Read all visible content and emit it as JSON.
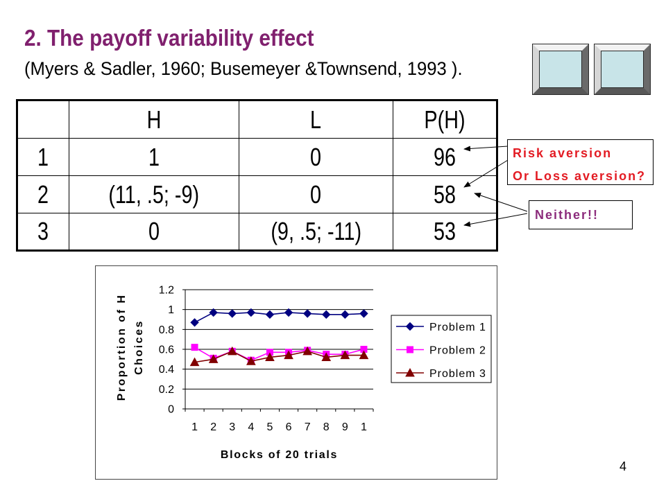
{
  "slide": {
    "title": "2. The payoff variability effect",
    "subtitle": "(Myers & Sadler, 1960; Busemeyer &Townsend, 1993 ).",
    "page_number": "4"
  },
  "colors": {
    "title": "#80206E",
    "risk_callout": "#E31B23",
    "neither_callout": "#8C2C7C",
    "button_face": "#C8E4E8"
  },
  "table": {
    "headers": [
      "H",
      "L",
      "P(H)"
    ],
    "rows": [
      [
        "1",
        "1",
        "0",
        "96"
      ],
      [
        "2",
        "(11, .5; -9)",
        "0",
        "58"
      ],
      [
        "3",
        "0",
        "(9, .5; -11)",
        "53"
      ]
    ]
  },
  "callouts": {
    "risk": [
      "Risk aversion",
      "Or Loss aversion?"
    ],
    "neither": "Neither!!"
  },
  "chart_data": {
    "type": "line",
    "categories": [
      "1",
      "2",
      "3",
      "4",
      "5",
      "6",
      "7",
      "8",
      "9",
      "1"
    ],
    "series": [
      {
        "name": "Problem 1",
        "values": [
          0.87,
          0.97,
          0.96,
          0.97,
          0.95,
          0.97,
          0.96,
          0.95,
          0.95,
          0.96
        ],
        "color": "#000080",
        "marker": "diamond"
      },
      {
        "name": "Problem 2",
        "values": [
          0.62,
          0.51,
          0.58,
          0.49,
          0.57,
          0.57,
          0.59,
          0.55,
          0.55,
          0.6
        ],
        "color": "#FF00FF",
        "marker": "square"
      },
      {
        "name": "Problem 3",
        "values": [
          0.47,
          0.5,
          0.58,
          0.48,
          0.52,
          0.54,
          0.58,
          0.52,
          0.54,
          0.54
        ],
        "color": "#800000",
        "marker": "triangle"
      }
    ],
    "xlabel": "Blocks of 20 trials",
    "ylabel": "Proportion of H Choices",
    "ylim": [
      0,
      1.2
    ],
    "ytick_labels": [
      "0",
      "0.2",
      "0.4",
      "0.6",
      "0.8",
      "1",
      "1.2"
    ],
    "grid": "horizontal",
    "legend": "right"
  }
}
